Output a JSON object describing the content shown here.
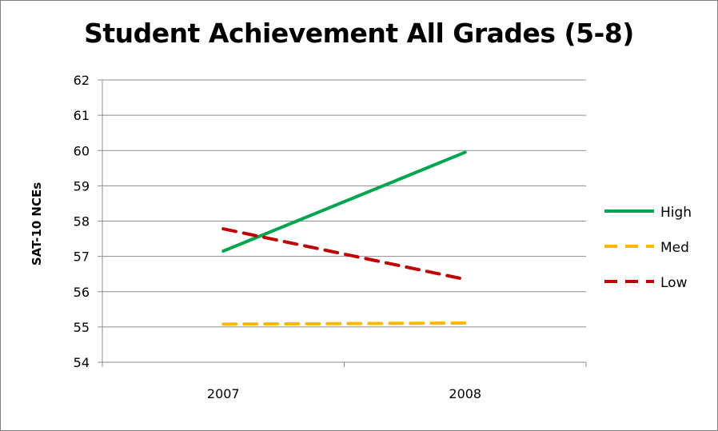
{
  "chart_data": {
    "type": "line",
    "title": "Student Achievement All Grades (5-8)",
    "ylabel": "SAT-10 NCEs",
    "xlabel": "",
    "categories": [
      "2007",
      "2008"
    ],
    "ylim": [
      54,
      62
    ],
    "yticks": [
      54,
      55,
      56,
      57,
      58,
      59,
      60,
      61,
      62
    ],
    "grid": true,
    "legend_position": "right",
    "series": [
      {
        "name": "High",
        "values": [
          57.15,
          59.95
        ],
        "color": "#00A550",
        "dash": "solid"
      },
      {
        "name": "Med",
        "values": [
          55.08,
          55.11
        ],
        "color": "#FFB800",
        "dash": "dashed"
      },
      {
        "name": "Low",
        "values": [
          57.78,
          56.35
        ],
        "color": "#C00000",
        "dash": "dashed"
      }
    ]
  }
}
